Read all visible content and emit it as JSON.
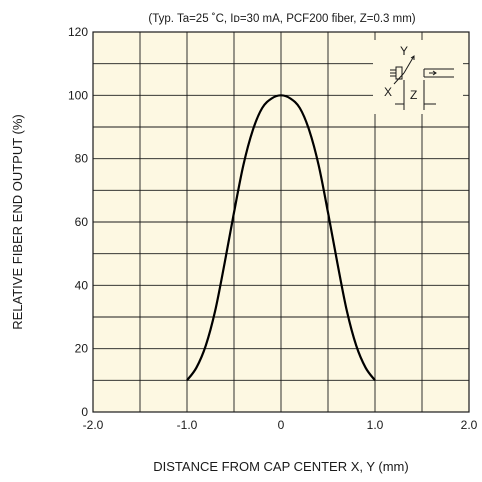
{
  "chart_data": {
    "type": "line",
    "conditions": "(Typ. Ta=25 ˚C, Iᴅ=30 mA, PCF200 fiber, Z=0.3 mm)",
    "xlabel": "DISTANCE FROM CAP CENTER  X, Y (mm)",
    "ylabel": "RELATIVE FIBER END OUTPUT (%)",
    "xlim": [
      -2.0,
      2.0
    ],
    "ylim": [
      0,
      120
    ],
    "x_ticks": [
      "-2.0",
      "-1.0",
      "0",
      "1.0",
      "2.0"
    ],
    "y_ticks": [
      "0",
      "20",
      "40",
      "60",
      "80",
      "100",
      "120"
    ],
    "grid": true,
    "inset": {
      "label_y": "Y",
      "label_x": "X",
      "label_z": "Z"
    },
    "series": [
      {
        "x": [
          -1.0,
          -0.9,
          -0.8,
          -0.7,
          -0.6,
          -0.5,
          -0.4,
          -0.3,
          -0.2,
          -0.1,
          0.0,
          0.1,
          0.2,
          0.3,
          0.4,
          0.5,
          0.6,
          0.7,
          0.8,
          0.9,
          1.0
        ],
        "values": [
          10,
          14,
          21,
          32,
          47,
          63,
          78,
          89,
          96,
          99,
          100,
          99,
          96,
          89,
          78,
          63,
          47,
          32,
          21,
          14,
          10
        ]
      }
    ]
  }
}
